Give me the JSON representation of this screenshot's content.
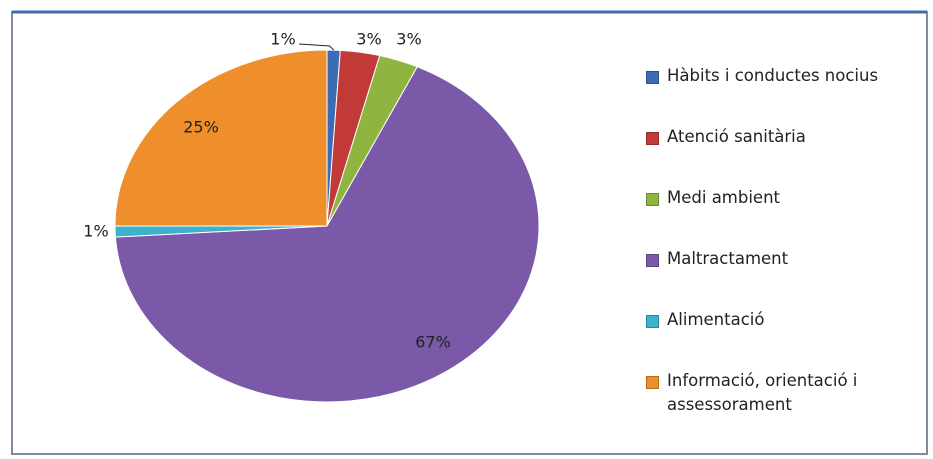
{
  "chart_data": {
    "type": "pie",
    "categories": [
      "Hàbits i conductes nocius",
      "Atenció sanitària",
      "Medi ambient",
      "Maltractament",
      "Alimentació",
      "Informació, orientació i assessorament"
    ],
    "values": [
      1,
      3,
      3,
      67,
      1,
      25
    ],
    "value_labels": [
      "1%",
      "3%",
      "3%",
      "67%",
      "1%",
      "25%"
    ],
    "colors": [
      "#3b6cb4",
      "#c23a37",
      "#8fb43f",
      "#7a5aa8",
      "#3cb2cc",
      "#ef8f2c"
    ],
    "legend": "right"
  }
}
